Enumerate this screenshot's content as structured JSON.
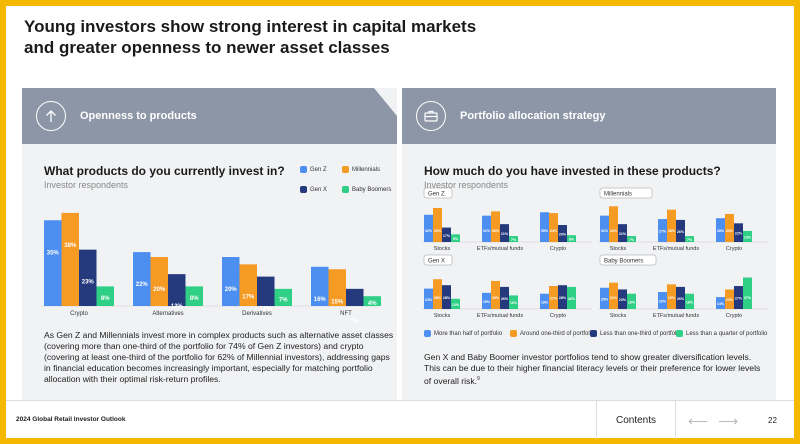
{
  "title_line1": "Young investors show strong interest in capital markets",
  "title_line2": "and greater openness to newer asset classes",
  "left_panel": {
    "banner": "Openness to products",
    "icon": "arrow-up-circle-icon",
    "question": "What products do you currently invest in?",
    "subtitle": "Investor respondents",
    "body": [
      "As Gen Z and Millennials invest more in complex products such as alternative asset classes",
      "(covering more than one-third of the portfolio for 74% of Gen Z investors) and crypto",
      "(covering at least one-third of the portfolio for 62% of Millennial investors), addressing gaps",
      "in financial education becomes increasingly important, especially for matching portfolio",
      "allocation with their optimal risk-return profiles."
    ]
  },
  "right_panel": {
    "banner": "Portfolio allocation strategy",
    "icon": "briefcase-icon",
    "question": "How much do you have invested in these products?",
    "subtitle": "Investor respondents",
    "body": [
      "Gen X and Baby Boomer investor portfolios tend to show greater diversification levels.",
      "This can be due to their higher financial literacy levels or their preference for lower levels",
      "of overall risk."
    ],
    "footnote_mark": "9"
  },
  "colors": {
    "gen_z": "#4d8ff0",
    "millennials": "#f59a23",
    "gen_x": "#253a7c",
    "boomers": "#2fcf86"
  },
  "legend_left": [
    "Gen Z",
    "Millennials",
    "Gen X",
    "Baby Boomers"
  ],
  "legend_right": [
    "More than half of portfolio",
    "Around one-third of portfolio",
    "Less than one-third of portfolio",
    "Less than a quarter of portfolio"
  ],
  "chart_data": [
    {
      "type": "bar",
      "categories": [
        "Crypto",
        "Alternatives",
        "Derivatives",
        "NFT"
      ],
      "series": [
        {
          "name": "Gen Z",
          "values": [
            35,
            22,
            20,
            16
          ]
        },
        {
          "name": "Millennials",
          "values": [
            38,
            20,
            17,
            15
          ]
        },
        {
          "name": "Gen X",
          "values": [
            23,
            13,
            12,
            7
          ]
        },
        {
          "name": "Baby Boomers",
          "values": [
            8,
            8,
            7,
            4
          ]
        }
      ]
    },
    {
      "type": "bar",
      "panel": "Gen Z",
      "categories": [
        "Stocks",
        "ETFs/mutual funds",
        "Crypto"
      ],
      "series": [
        {
          "name": "More than half of portfolio",
          "values": [
            32,
            31,
            35
          ]
        },
        {
          "name": "Around one-third of portfolio",
          "values": [
            40,
            36,
            34
          ]
        },
        {
          "name": "Less than one-third of portfolio",
          "values": [
            17,
            21,
            20
          ]
        },
        {
          "name": "Less than a quarter of portfolio",
          "values": [
            9,
            7,
            8
          ]
        }
      ]
    },
    {
      "type": "bar",
      "panel": "Millennials",
      "categories": [
        "Stocks",
        "ETFs/mutual funds",
        "Crypto"
      ],
      "series": [
        {
          "name": "More than half of portfolio",
          "values": [
            31,
            27,
            28
          ]
        },
        {
          "name": "Around one-third of portfolio",
          "values": [
            42,
            38,
            33
          ]
        },
        {
          "name": "Less than one-third of portfolio",
          "values": [
            21,
            26,
            22
          ]
        },
        {
          "name": "Less than a quarter of portfolio",
          "values": [
            7,
            7,
            13
          ]
        }
      ]
    },
    {
      "type": "bar",
      "panel": "Gen X",
      "categories": [
        "Stocks",
        "ETFs/mutual funds",
        "Crypto"
      ],
      "series": [
        {
          "name": "More than half of portfolio",
          "values": [
            24,
            19,
            18
          ]
        },
        {
          "name": "Around one-third of portfolio",
          "values": [
            35,
            33,
            27
          ]
        },
        {
          "name": "Less than one-third of portfolio",
          "values": [
            28,
            26,
            28
          ]
        },
        {
          "name": "Less than a quarter of portfolio",
          "values": [
            12,
            16,
            26
          ]
        }
      ]
    },
    {
      "type": "bar",
      "panel": "Baby Boomers",
      "categories": [
        "Stocks",
        "ETFs/mutual funds",
        "Crypto"
      ],
      "series": [
        {
          "name": "More than half of portfolio",
          "values": [
            25,
            20,
            14
          ]
        },
        {
          "name": "Around one-third of portfolio",
          "values": [
            31,
            29,
            23
          ]
        },
        {
          "name": "Less than one-third of portfolio",
          "values": [
            23,
            26,
            27
          ]
        },
        {
          "name": "Less than a quarter of portfolio",
          "values": [
            18,
            18,
            37
          ]
        }
      ]
    }
  ],
  "footer": {
    "publication": "2024 Global Retail Investor Outlook",
    "contents": "Contents",
    "page": "22"
  }
}
